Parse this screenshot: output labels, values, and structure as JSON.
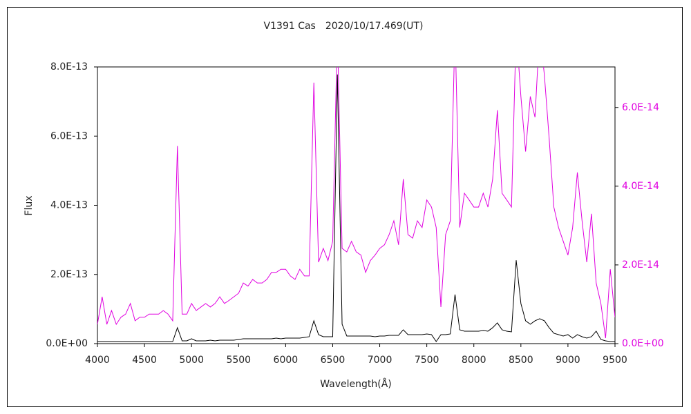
{
  "chart_data": {
    "type": "line",
    "title": "V1391 Cas　2020/10/17.469(UT)",
    "xlabel": "Wavelength(Å)",
    "ylabel": "Flux",
    "x": [
      4000,
      4050,
      4100,
      4150,
      4200,
      4250,
      4300,
      4350,
      4400,
      4450,
      4500,
      4550,
      4600,
      4650,
      4700,
      4750,
      4800,
      4850,
      4900,
      4950,
      5000,
      5050,
      5100,
      5150,
      5200,
      5250,
      5300,
      5350,
      5400,
      5450,
      5500,
      5550,
      5600,
      5650,
      5700,
      5750,
      5800,
      5850,
      5900,
      5950,
      6000,
      6050,
      6100,
      6150,
      6200,
      6250,
      6300,
      6350,
      6400,
      6450,
      6500,
      6550,
      6600,
      6650,
      6700,
      6750,
      6800,
      6850,
      6900,
      6950,
      7000,
      7050,
      7100,
      7150,
      7200,
      7250,
      7300,
      7350,
      7400,
      7450,
      7500,
      7550,
      7600,
      7650,
      7700,
      7750,
      7800,
      7850,
      7900,
      7950,
      8000,
      8050,
      8100,
      8150,
      8200,
      8250,
      8300,
      8350,
      8400,
      8450,
      8500,
      8550,
      8600,
      8650,
      8700,
      8750,
      8800,
      8850,
      8900,
      8950,
      9000,
      9050,
      9100,
      9150,
      9200,
      9250,
      9300,
      9350,
      9400,
      9450,
      9500
    ],
    "xlim": [
      4000,
      9500
    ],
    "xticks": [
      4000,
      4500,
      5000,
      5500,
      6000,
      6500,
      7000,
      7500,
      8000,
      8500,
      9000,
      9500
    ],
    "ylim": [
      0,
      8e-13
    ],
    "yticks": [
      {
        "value": 0,
        "label": "0.0E+00"
      },
      {
        "value": 2e-13,
        "label": "2.0E-13"
      },
      {
        "value": 4e-13,
        "label": "4.0E-13"
      },
      {
        "value": 6e-13,
        "label": "6.0E-13"
      },
      {
        "value": 8e-13,
        "label": "8.0E-13"
      }
    ],
    "y2lim": [
      0,
      7.03e-14
    ],
    "y2ticks": [
      {
        "value": 0,
        "label": "0.0E+00"
      },
      {
        "value": 2e-14,
        "label": "2.0E-14"
      },
      {
        "value": 4e-14,
        "label": "4.0E-14"
      },
      {
        "value": 6e-14,
        "label": "6.0E-14"
      }
    ],
    "y2color": "#e000e0",
    "series": [
      {
        "color": "#000000",
        "values": [
          6e-15,
          6e-15,
          6e-15,
          6e-15,
          6e-15,
          6e-15,
          6e-15,
          6e-15,
          6e-15,
          6e-15,
          6e-15,
          6e-15,
          6e-15,
          6e-15,
          6e-15,
          6e-15,
          6e-15,
          4.6e-14,
          8e-15,
          8e-15,
          1.4e-14,
          8e-15,
          8e-15,
          8e-15,
          1e-14,
          8e-15,
          1e-14,
          1e-14,
          1e-14,
          1e-14,
          1.2e-14,
          1.4e-14,
          1.4e-14,
          1.4e-14,
          1.4e-14,
          1.4e-14,
          1.4e-14,
          1.4e-14,
          1.6e-14,
          1.4e-14,
          1.6e-14,
          1.6e-14,
          1.6e-14,
          1.6e-14,
          1.8e-14,
          2e-14,
          6.6e-14,
          2.6e-14,
          2e-14,
          2e-14,
          2e-14,
          7.78e-13,
          5.6e-14,
          2.2e-14,
          2.2e-14,
          2.2e-14,
          2.2e-14,
          2.2e-14,
          2.2e-14,
          2e-14,
          2.2e-14,
          2.2e-14,
          2.4e-14,
          2.4e-14,
          2.4e-14,
          4e-14,
          2.6e-14,
          2.6e-14,
          2.6e-14,
          2.6e-14,
          2.8e-14,
          2.6e-14,
          6e-15,
          2.6e-14,
          2.6e-14,
          2.8e-14,
          1.42e-13,
          4e-14,
          3.6e-14,
          3.6e-14,
          3.6e-14,
          3.6e-14,
          3.8e-14,
          3.6e-14,
          4.6e-14,
          6e-14,
          4e-14,
          3.6e-14,
          3.4e-14,
          2.41e-13,
          1.16e-13,
          6.6e-14,
          5.6e-14,
          6.6e-14,
          7.2e-14,
          6.6e-14,
          4.6e-14,
          3e-14,
          2.6e-14,
          2.2e-14,
          2.6e-14,
          1.6e-14,
          2.6e-14,
          2e-14,
          1.6e-14,
          2e-14,
          3.6e-14,
          1.2e-14,
          8e-15,
          6e-15,
          6e-15
        ]
      },
      {
        "color": "#e000e0",
        "axis": "y2",
        "values": [
          4.9e-15,
          1.19e-14,
          4.9e-15,
          8.4e-15,
          4.9e-15,
          6.7e-15,
          7.5e-15,
          1.02e-14,
          5.8e-15,
          6.7e-15,
          6.7e-15,
          7.5e-15,
          7.5e-15,
          7.5e-15,
          8.4e-15,
          7.5e-15,
          5.8e-15,
          5.02e-14,
          7.5e-15,
          7.5e-15,
          1.02e-14,
          8.4e-15,
          9.3e-15,
          1.02e-14,
          9.3e-15,
          1.02e-14,
          1.19e-14,
          1.02e-14,
          1.1e-14,
          1.19e-14,
          1.28e-14,
          1.54e-14,
          1.46e-14,
          1.63e-14,
          1.54e-14,
          1.54e-14,
          1.63e-14,
          1.81e-14,
          1.81e-14,
          1.89e-14,
          1.89e-14,
          1.72e-14,
          1.63e-14,
          1.89e-14,
          1.72e-14,
          1.72e-14,
          6.63e-14,
          2.07e-14,
          2.42e-14,
          2.11e-14,
          2.6e-14,
          8e-14,
          2.42e-14,
          2.33e-14,
          2.6e-14,
          2.33e-14,
          2.25e-14,
          1.81e-14,
          2.11e-14,
          2.25e-14,
          2.42e-14,
          2.51e-14,
          2.77e-14,
          3.12e-14,
          2.51e-14,
          4.18e-14,
          2.77e-14,
          2.68e-14,
          3.12e-14,
          2.95e-14,
          3.65e-14,
          3.47e-14,
          2.95e-14,
          9.3e-15,
          2.77e-14,
          3.12e-14,
          8e-14,
          2.95e-14,
          3.82e-14,
          3.65e-14,
          3.47e-14,
          3.47e-14,
          3.82e-14,
          3.47e-14,
          4.18e-14,
          5.93e-14,
          3.82e-14,
          3.65e-14,
          3.47e-14,
          8e-14,
          6.28e-14,
          4.88e-14,
          6.28e-14,
          5.75e-14,
          8e-14,
          6.81e-14,
          5.23e-14,
          3.47e-14,
          2.95e-14,
          2.6e-14,
          2.25e-14,
          2.95e-14,
          4.35e-14,
          3.12e-14,
          2.07e-14,
          3.3e-14,
          1.54e-14,
          1.02e-14,
          1.4e-15,
          1.89e-14,
          6.7e-15
        ]
      }
    ]
  }
}
